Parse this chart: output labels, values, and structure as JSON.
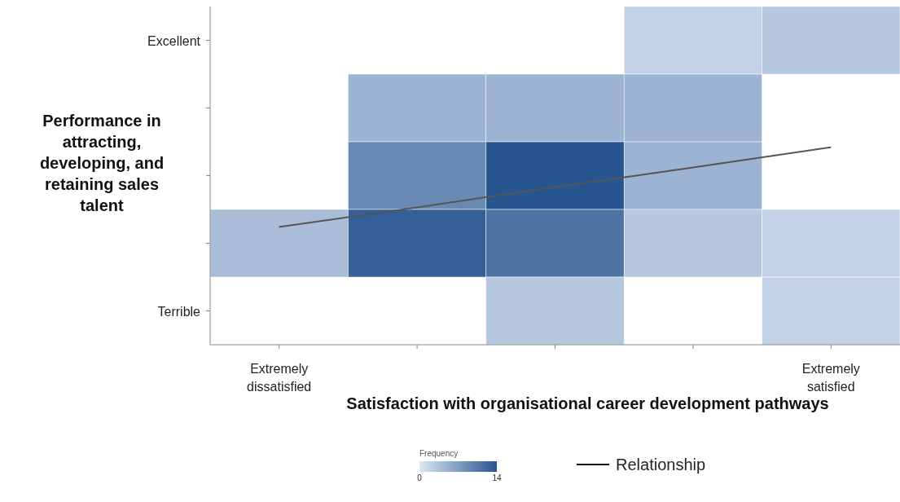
{
  "chart_data": {
    "type": "heatmap",
    "xlabel": "Satisfaction with organisational career development pathways",
    "ylabel": "Performance in attracting, developing, and retaining sales talent",
    "categories": [
      "Extremely dissatisfied",
      null,
      null,
      null,
      "Extremely satisfied"
    ],
    "y_categories": [
      "Excellent",
      null,
      null,
      null,
      "Terrible"
    ],
    "cells": [
      [
        null,
        null,
        null,
        2,
        3
      ],
      [
        null,
        5,
        5,
        5,
        null
      ],
      [
        null,
        9,
        14,
        5,
        null
      ],
      [
        4,
        13,
        11,
        3,
        2
      ],
      [
        null,
        null,
        3,
        null,
        2
      ]
    ],
    "clabel": "Frequency",
    "clim": [
      0,
      14
    ],
    "cticks": [
      0,
      14
    ],
    "series": [
      {
        "type": "line",
        "name": "Relationship",
        "color": "#555555",
        "values": [
          2.76,
          2.47,
          2.17,
          1.88,
          1.58
        ]
      }
    ],
    "legend": "bottom"
  }
}
